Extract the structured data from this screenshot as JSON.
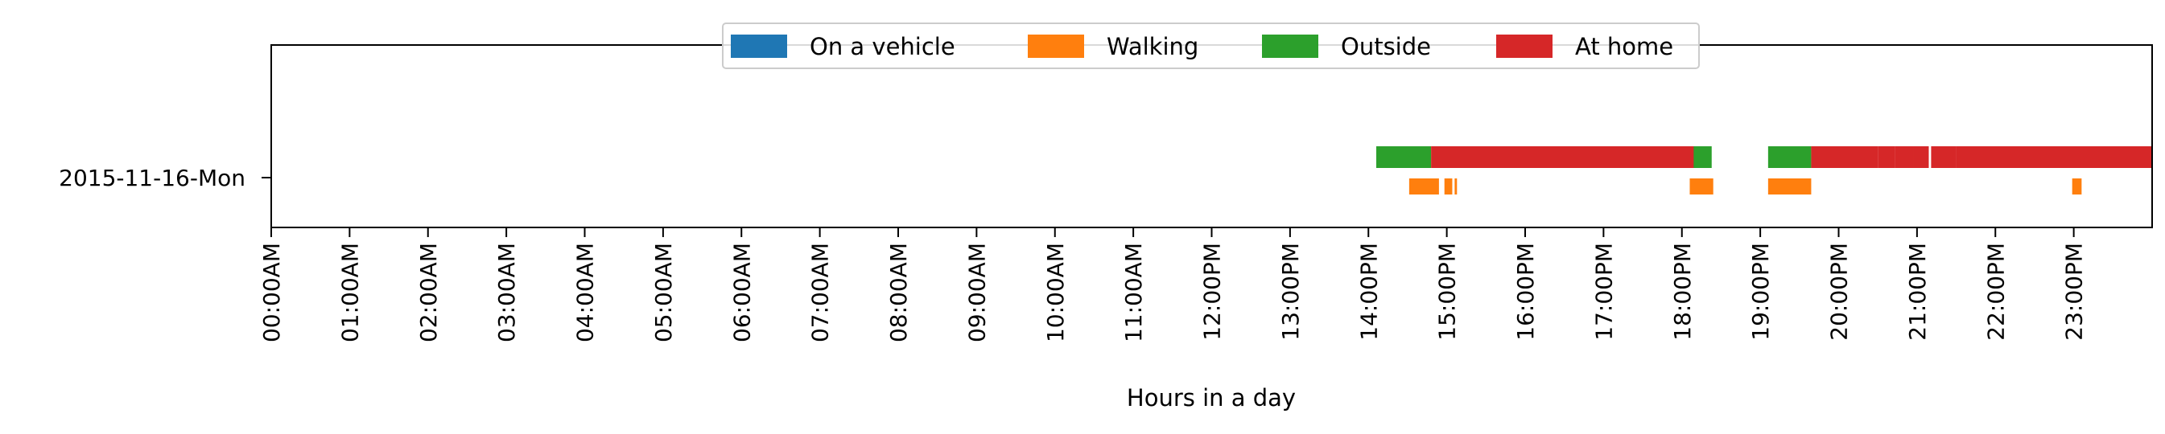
{
  "chart_data": {
    "type": "timeline",
    "title": "",
    "xlabel": "Hours in a day",
    "ylabel": "",
    "xlim": [
      0,
      24
    ],
    "x_tick_labels": [
      "00:00AM",
      "01:00AM",
      "02:00AM",
      "03:00AM",
      "04:00AM",
      "05:00AM",
      "06:00AM",
      "07:00AM",
      "08:00AM",
      "09:00AM",
      "10:00AM",
      "11:00AM",
      "12:00PM",
      "13:00PM",
      "14:00PM",
      "15:00PM",
      "16:00PM",
      "17:00PM",
      "18:00PM",
      "19:00PM",
      "20:00PM",
      "21:00PM",
      "22:00PM",
      "23:00PM"
    ],
    "categories": [
      "2015-11-16-Mon"
    ],
    "legend_position": "top-center",
    "grid": false,
    "series": [
      {
        "name": "On a vehicle",
        "color": "#1f77b4",
        "lane": "upper",
        "intervals": []
      },
      {
        "name": "Walking",
        "color": "#ff7f0e",
        "lane": "lower",
        "intervals": [
          [
            14.52,
            14.9
          ],
          [
            14.97,
            15.07
          ],
          [
            15.1,
            15.13
          ],
          [
            18.1,
            18.4
          ],
          [
            19.1,
            19.65
          ],
          [
            22.98,
            23.1
          ]
        ]
      },
      {
        "name": "Outside",
        "color": "#2ca02c",
        "lane": "upper",
        "intervals": [
          [
            14.1,
            14.8
          ],
          [
            18.1,
            18.38
          ],
          [
            19.1,
            19.65
          ]
        ]
      },
      {
        "name": "At home",
        "color": "#d62728",
        "lane": "upper",
        "intervals": [
          [
            14.8,
            18.15
          ],
          [
            19.65,
            20.5
          ],
          [
            20.5,
            20.72
          ],
          [
            20.72,
            20.95
          ],
          [
            20.95,
            21.15
          ],
          [
            21.18,
            21.5
          ],
          [
            21.5,
            24.0
          ]
        ]
      }
    ]
  }
}
